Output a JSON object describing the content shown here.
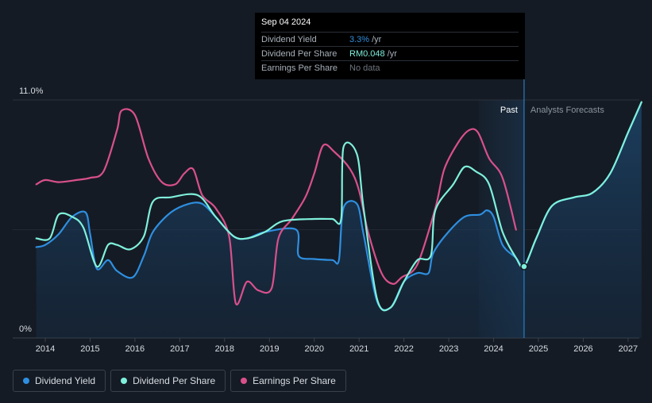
{
  "tooltip": {
    "date": "Sep 04 2024",
    "rows": [
      {
        "label": "Dividend Yield",
        "value": "3.3%",
        "unit": "/yr"
      },
      {
        "label": "Dividend Per Share",
        "value": "RM0.048",
        "unit": "/yr"
      },
      {
        "label": "Earnings Per Share",
        "value": "No data",
        "unit": ""
      }
    ]
  },
  "legend": [
    {
      "label": "Dividend Yield",
      "color": "#2e8fe0"
    },
    {
      "label": "Dividend Per Share",
      "color": "#7ff0dc"
    },
    {
      "label": "Earnings Per Share",
      "color": "#d9508c"
    }
  ],
  "chart_data": {
    "type": "line",
    "y_top_label": "11.0%",
    "y_bottom_label": "0%",
    "ylim": [
      0,
      11
    ],
    "xlim": [
      2013.8,
      2027.3
    ],
    "x_ticks": [
      "2014",
      "2015",
      "2016",
      "2017",
      "2018",
      "2019",
      "2020",
      "2021",
      "2022",
      "2023",
      "2024",
      "2025",
      "2026",
      "2027"
    ],
    "past_label": "Past",
    "forecast_label": "Analysts Forecasts",
    "forecast_start": 2024.68,
    "forecast_shade_start": 2023.67,
    "highlight": {
      "x": 2024.68,
      "y": 3.3
    },
    "colors": {
      "yield": "#2e8fe0",
      "dps": "#7ff0dc",
      "eps": "#d9508c"
    },
    "series": [
      {
        "name": "Dividend Yield",
        "points": [
          [
            2013.8,
            4.2
          ],
          [
            2014.0,
            4.3
          ],
          [
            2014.3,
            4.8
          ],
          [
            2014.6,
            5.6
          ],
          [
            2014.9,
            5.8
          ],
          [
            2015.0,
            4.8
          ],
          [
            2015.15,
            3.2
          ],
          [
            2015.4,
            3.6
          ],
          [
            2015.6,
            3.1
          ],
          [
            2015.95,
            2.8
          ],
          [
            2016.2,
            3.8
          ],
          [
            2016.4,
            4.9
          ],
          [
            2016.8,
            5.8
          ],
          [
            2017.2,
            6.2
          ],
          [
            2017.5,
            6.2
          ],
          [
            2017.8,
            5.6
          ],
          [
            2018.2,
            4.7
          ],
          [
            2018.5,
            4.6
          ],
          [
            2018.9,
            4.9
          ],
          [
            2019.6,
            5.0
          ],
          [
            2019.65,
            3.8
          ],
          [
            2020.0,
            3.65
          ],
          [
            2020.4,
            3.6
          ],
          [
            2020.55,
            3.6
          ],
          [
            2020.65,
            6.0
          ],
          [
            2020.95,
            6.2
          ],
          [
            2021.1,
            4.8
          ],
          [
            2021.4,
            1.7
          ],
          [
            2021.7,
            1.4
          ],
          [
            2022.0,
            2.6
          ],
          [
            2022.3,
            3.0
          ],
          [
            2022.55,
            3.0
          ],
          [
            2022.65,
            3.9
          ],
          [
            2022.95,
            4.8
          ],
          [
            2023.35,
            5.6
          ],
          [
            2023.7,
            5.7
          ],
          [
            2023.85,
            5.9
          ],
          [
            2024.0,
            5.6
          ],
          [
            2024.2,
            4.3
          ],
          [
            2024.5,
            3.7
          ],
          [
            2024.68,
            3.3
          ],
          [
            2024.95,
            4.6
          ],
          [
            2025.3,
            6.1
          ],
          [
            2025.8,
            6.5
          ],
          [
            2026.2,
            6.7
          ],
          [
            2026.6,
            7.6
          ],
          [
            2027.0,
            9.5
          ],
          [
            2027.3,
            10.9
          ]
        ]
      },
      {
        "name": "Dividend Per Share",
        "points": [
          [
            2013.8,
            4.6
          ],
          [
            2014.1,
            4.6
          ],
          [
            2014.3,
            5.7
          ],
          [
            2014.6,
            5.6
          ],
          [
            2014.85,
            5.1
          ],
          [
            2015.15,
            3.3
          ],
          [
            2015.4,
            4.3
          ],
          [
            2015.6,
            4.3
          ],
          [
            2015.9,
            4.1
          ],
          [
            2016.2,
            4.7
          ],
          [
            2016.4,
            6.3
          ],
          [
            2016.8,
            6.5
          ],
          [
            2017.4,
            6.6
          ],
          [
            2017.8,
            5.6
          ],
          [
            2018.2,
            4.7
          ],
          [
            2018.5,
            4.6
          ],
          [
            2018.9,
            4.9
          ],
          [
            2019.3,
            5.4
          ],
          [
            2020.0,
            5.5
          ],
          [
            2020.4,
            5.5
          ],
          [
            2020.6,
            5.5
          ],
          [
            2020.65,
            8.8
          ],
          [
            2020.95,
            8.5
          ],
          [
            2021.1,
            6.0
          ],
          [
            2021.4,
            1.8
          ],
          [
            2021.7,
            1.4
          ],
          [
            2022.0,
            2.6
          ],
          [
            2022.3,
            3.6
          ],
          [
            2022.6,
            3.8
          ],
          [
            2022.7,
            5.9
          ],
          [
            2023.1,
            7.1
          ],
          [
            2023.35,
            7.9
          ],
          [
            2023.6,
            7.7
          ],
          [
            2023.9,
            7.1
          ],
          [
            2024.2,
            4.9
          ],
          [
            2024.5,
            3.7
          ],
          [
            2024.68,
            3.3
          ],
          [
            2024.95,
            4.6
          ],
          [
            2025.3,
            6.1
          ],
          [
            2025.8,
            6.5
          ],
          [
            2026.2,
            6.7
          ],
          [
            2026.6,
            7.6
          ],
          [
            2027.0,
            9.5
          ],
          [
            2027.3,
            10.9
          ]
        ]
      },
      {
        "name": "Earnings Per Share",
        "points": [
          [
            2013.8,
            7.1
          ],
          [
            2014.0,
            7.3
          ],
          [
            2014.3,
            7.2
          ],
          [
            2014.7,
            7.3
          ],
          [
            2015.0,
            7.4
          ],
          [
            2015.3,
            7.7
          ],
          [
            2015.6,
            9.6
          ],
          [
            2015.7,
            10.5
          ],
          [
            2016.0,
            10.3
          ],
          [
            2016.3,
            8.3
          ],
          [
            2016.6,
            7.2
          ],
          [
            2016.9,
            7.1
          ],
          [
            2017.1,
            7.6
          ],
          [
            2017.3,
            7.8
          ],
          [
            2017.5,
            6.6
          ],
          [
            2017.8,
            6.0
          ],
          [
            2018.1,
            4.7
          ],
          [
            2018.25,
            1.6
          ],
          [
            2018.5,
            2.6
          ],
          [
            2018.75,
            2.2
          ],
          [
            2019.05,
            2.3
          ],
          [
            2019.2,
            4.6
          ],
          [
            2019.5,
            5.5
          ],
          [
            2019.8,
            6.5
          ],
          [
            2020.0,
            7.6
          ],
          [
            2020.2,
            8.9
          ],
          [
            2020.45,
            8.6
          ],
          [
            2020.8,
            7.8
          ],
          [
            2021.0,
            6.8
          ],
          [
            2021.2,
            4.9
          ],
          [
            2021.5,
            3.0
          ],
          [
            2021.75,
            2.5
          ],
          [
            2021.95,
            2.8
          ],
          [
            2022.3,
            3.4
          ],
          [
            2022.7,
            6.0
          ],
          [
            2022.9,
            7.8
          ],
          [
            2023.2,
            9.0
          ],
          [
            2023.45,
            9.6
          ],
          [
            2023.65,
            9.5
          ],
          [
            2023.9,
            8.3
          ],
          [
            2024.2,
            7.4
          ],
          [
            2024.5,
            5.0
          ]
        ]
      }
    ]
  }
}
